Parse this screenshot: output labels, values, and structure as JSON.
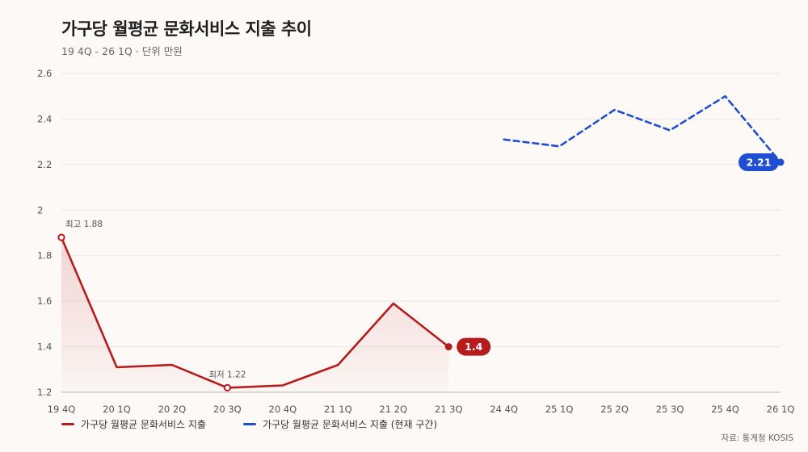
{
  "title": "가구당 월평균 문화서비스 지출 추이",
  "subtitle": "19 4Q - 26 1Q · 단위 만원",
  "source": "자료: 통계청 KOSIS",
  "colors": {
    "series1": "#b71c1c",
    "series2": "#1f4fd1"
  },
  "annotations": {
    "max_label": "최고 1.88",
    "min_label": "최저 1.22"
  },
  "chart_data": {
    "type": "line",
    "x": [
      "19 4Q",
      "20 1Q",
      "20 2Q",
      "20 3Q",
      "20 4Q",
      "21 1Q",
      "21 2Q",
      "21 3Q",
      "24 4Q",
      "25 1Q",
      "25 2Q",
      "25 3Q",
      "25 4Q",
      "26 1Q"
    ],
    "ylim": [
      1.2,
      2.6
    ],
    "yticks": [
      1.2,
      1.4,
      1.6,
      1.8,
      2,
      2.2,
      2.4,
      2.6
    ],
    "grid": true,
    "legend_position": "bottom-left",
    "series": [
      {
        "name": "가구당 월평균 문화서비스 지출",
        "values": [
          1.88,
          1.31,
          1.32,
          1.22,
          1.23,
          1.32,
          1.59,
          1.4,
          null,
          null,
          null,
          null,
          null,
          null
        ],
        "end_label": "1.4"
      },
      {
        "name": "가구당 월평균 문화서비스 지출 (현재 구간)",
        "values": [
          null,
          null,
          null,
          null,
          null,
          null,
          null,
          null,
          2.31,
          2.28,
          2.44,
          2.35,
          2.5,
          2.21
        ],
        "end_label": "2.21"
      }
    ]
  }
}
